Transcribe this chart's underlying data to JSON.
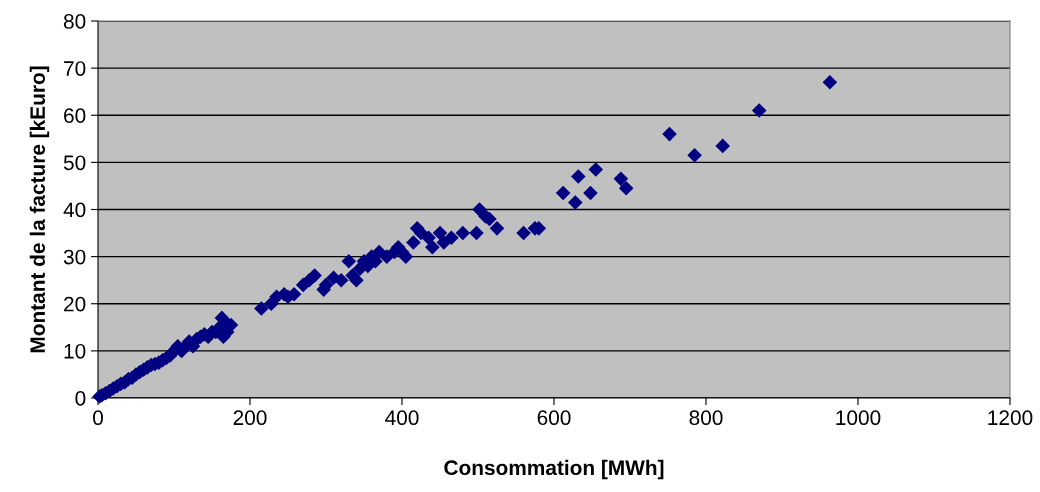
{
  "chart_data": {
    "type": "scatter",
    "xlabel": "Consommation [MWh]",
    "ylabel": "Montant de la facture [kEuro]",
    "x": [
      2,
      5,
      10,
      15,
      20,
      25,
      30,
      35,
      40,
      45,
      50,
      55,
      60,
      65,
      70,
      75,
      80,
      85,
      90,
      95,
      100,
      105,
      110,
      115,
      120,
      125,
      130,
      135,
      140,
      145,
      150,
      155,
      160,
      163,
      165,
      168,
      170,
      175,
      215,
      228,
      235,
      245,
      250,
      258,
      270,
      278,
      285,
      297,
      300,
      310,
      320,
      330,
      335,
      340,
      345,
      350,
      355,
      360,
      365,
      370,
      380,
      390,
      395,
      400,
      405,
      415,
      420,
      425,
      435,
      440,
      450,
      455,
      465,
      480,
      498,
      502,
      510,
      515,
      525,
      560,
      575,
      580,
      612,
      628,
      632,
      648,
      655,
      688,
      695,
      752,
      785,
      822,
      870,
      963
    ],
    "series": [
      {
        "color": "#000080",
        "values": [
          0.3,
          0.6,
          1,
          1.5,
          2,
          2.5,
          3,
          3.3,
          4,
          4.3,
          5,
          5.5,
          6,
          6.5,
          7,
          7.2,
          7.5,
          8,
          8.5,
          9,
          10,
          11,
          10,
          11,
          12,
          11,
          12.5,
          13,
          13.5,
          13,
          14,
          14,
          15,
          17,
          13,
          16,
          14,
          15.5,
          19,
          20,
          21.5,
          22,
          21.5,
          22,
          24,
          25,
          26,
          23,
          24,
          25.5,
          25,
          29,
          26,
          25,
          27.5,
          29,
          28,
          30,
          29,
          31,
          30,
          31,
          32,
          31,
          30,
          33,
          36,
          35,
          34,
          32,
          35,
          33,
          34,
          35,
          35,
          40,
          38.5,
          38,
          36,
          35,
          36,
          36,
          43.5,
          41.5,
          47,
          43.5,
          48.5,
          46.5,
          44.5,
          56,
          51.5,
          53.5,
          61,
          67
        ]
      }
    ],
    "xlim": [
      0,
      1200
    ],
    "xticks": [
      0,
      200,
      400,
      600,
      800,
      1000,
      1200
    ],
    "ylim": [
      0,
      80
    ],
    "yticks": [
      0,
      10,
      20,
      30,
      40,
      50,
      60,
      70,
      80
    ],
    "grid": "y",
    "marker": "diamond",
    "legend": false
  }
}
